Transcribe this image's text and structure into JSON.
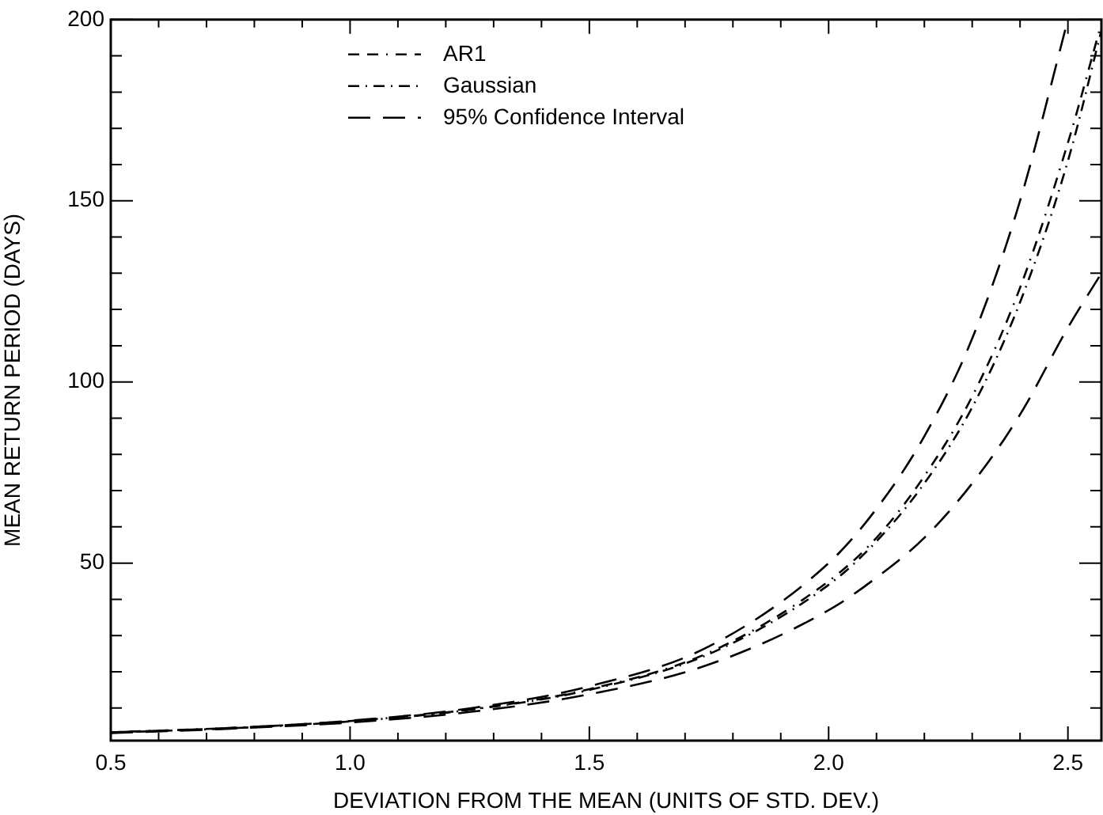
{
  "chart_data": {
    "type": "line",
    "xlabel": "DEVIATION FROM THE MEAN (UNITS OF STD. DEV.)",
    "ylabel": "MEAN RETURN PERIOD (DAYS)",
    "xlim": [
      0.5,
      2.57
    ],
    "xticks": [
      {
        "value": 0.5,
        "label": "0.5"
      },
      {
        "value": 0.6,
        "label": null
      },
      {
        "value": 0.7,
        "label": null
      },
      {
        "value": 0.8,
        "label": null
      },
      {
        "value": 0.9,
        "label": null
      },
      {
        "value": 1.0,
        "label": "1.0"
      },
      {
        "value": 1.1,
        "label": null
      },
      {
        "value": 1.2,
        "label": null
      },
      {
        "value": 1.3,
        "label": null
      },
      {
        "value": 1.4,
        "label": null
      },
      {
        "value": 1.5,
        "label": "1.5"
      },
      {
        "value": 1.6,
        "label": null
      },
      {
        "value": 1.7,
        "label": null
      },
      {
        "value": 1.8,
        "label": null
      },
      {
        "value": 1.9,
        "label": null
      },
      {
        "value": 2.0,
        "label": "2.0"
      },
      {
        "value": 2.1,
        "label": null
      },
      {
        "value": 2.2,
        "label": null
      },
      {
        "value": 2.3,
        "label": null
      },
      {
        "value": 2.4,
        "label": null
      },
      {
        "value": 2.5,
        "label": "2.5"
      }
    ],
    "ylim": [
      1,
      200
    ],
    "yticks": [
      {
        "value": 10,
        "label": null
      },
      {
        "value": 20,
        "label": null
      },
      {
        "value": 30,
        "label": null
      },
      {
        "value": 40,
        "label": null
      },
      50,
      {
        "value": 60,
        "label": null
      },
      {
        "value": 70,
        "label": null
      },
      {
        "value": 80,
        "label": null
      },
      {
        "value": 90,
        "label": null
      },
      100,
      {
        "value": 110,
        "label": null
      },
      {
        "value": 120,
        "label": null
      },
      {
        "value": 130,
        "label": null
      },
      {
        "value": 140,
        "label": null
      },
      150,
      {
        "value": 160,
        "label": null
      },
      {
        "value": 170,
        "label": null
      },
      {
        "value": 180,
        "label": null
      },
      {
        "value": 190,
        "label": null
      },
      200
    ],
    "grid": false,
    "legend": "top left",
    "marker": "none",
    "x": [
      0.5,
      0.75,
      1.0,
      1.25,
      1.5,
      1.75,
      2.0,
      2.1,
      2.2,
      2.3,
      2.4,
      2.5,
      2.57
    ],
    "series": [
      {
        "name": "AR1",
        "color": "#000000",
        "line_style": "dashed",
        "values": [
          3.3,
          4.5,
          6.4,
          9.6,
          15.2,
          25.3,
          45,
          57,
          74,
          96,
          126,
          166,
          199
        ]
      },
      {
        "name": "Gaussian",
        "color": "#000000",
        "line_style": "dashdot",
        "values": [
          3.2,
          4.4,
          6.3,
          9.5,
          15.0,
          24.9,
          44,
          56,
          72,
          93,
          122,
          161,
          197
        ]
      },
      {
        "name": "95% Confidence Interval",
        "color": "#000000",
        "line_style": "longdash",
        "values": [
          3.3,
          4.5,
          6.5,
          9.9,
          16,
          27,
          50,
          65,
          85,
          112,
          150,
          200,
          null
        ]
      },
      {
        "color": "#000000",
        "line_style": "longdash",
        "values": [
          3.1,
          4.3,
          6.0,
          8.9,
          13.8,
          22,
          37,
          46,
          57,
          72,
          91,
          115,
          130
        ]
      }
    ]
  }
}
